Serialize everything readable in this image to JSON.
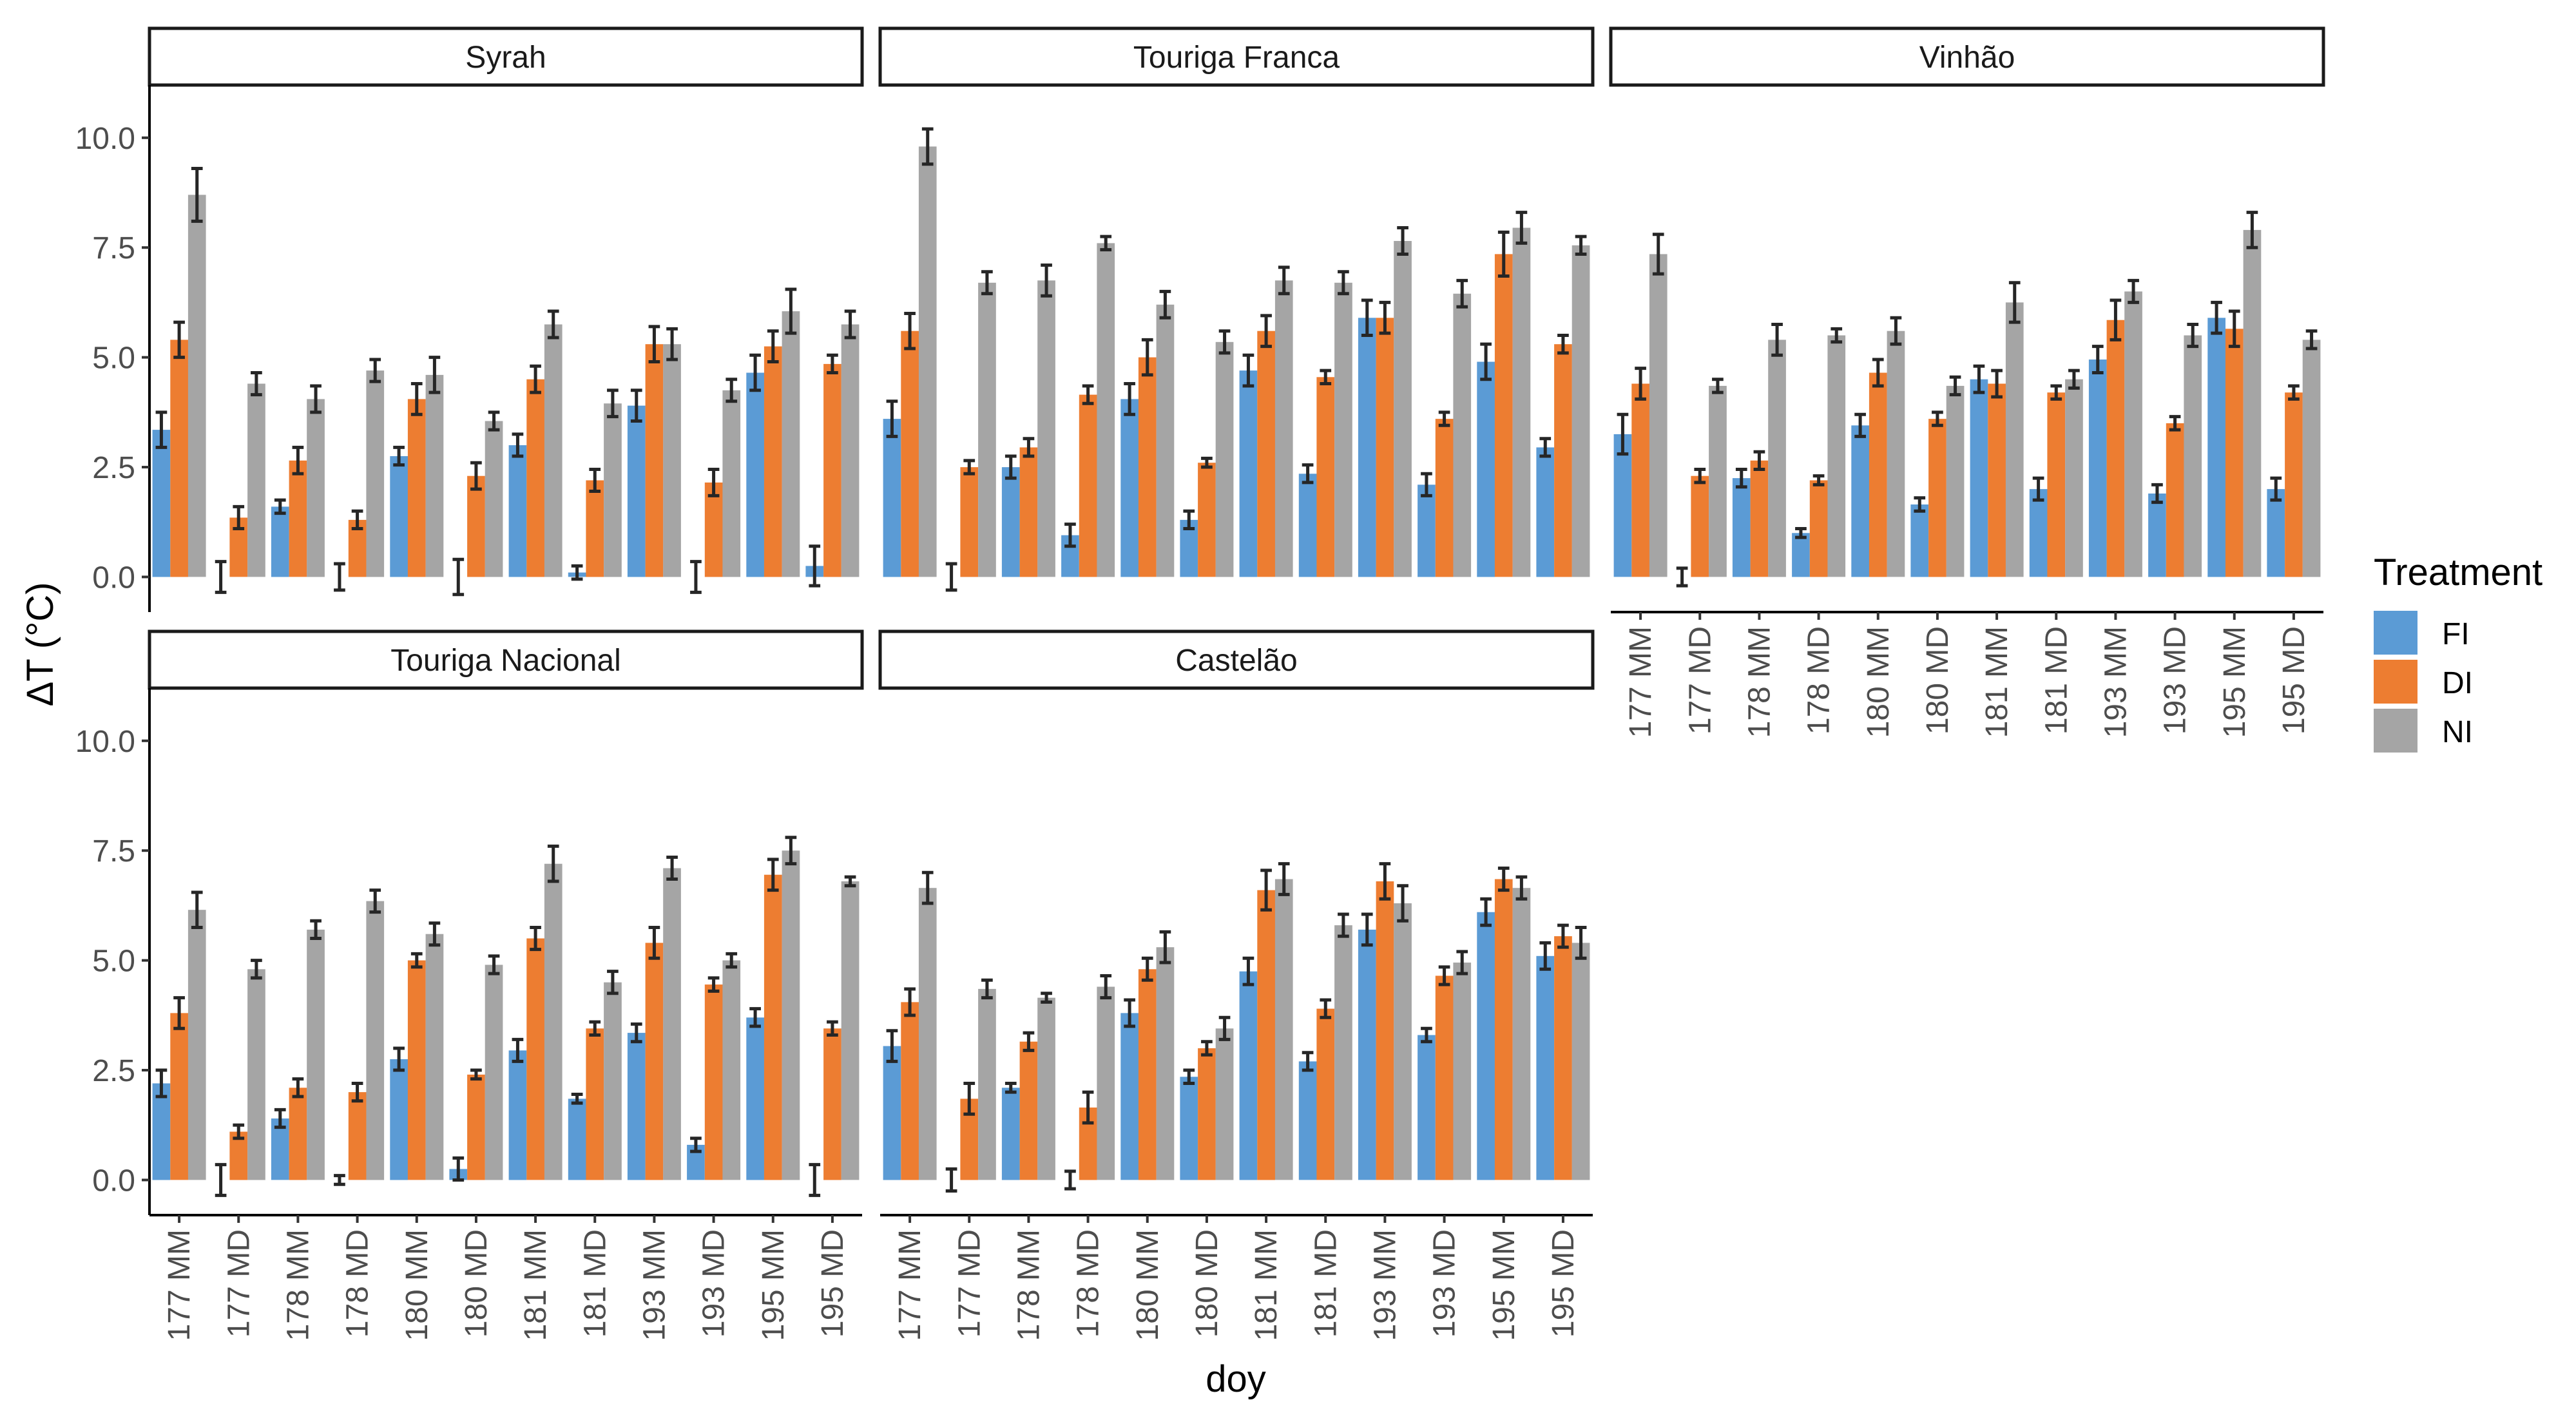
{
  "chart_data": {
    "type": "bar",
    "subtype": "faceted grouped bar with error bars",
    "xlabel": "doy",
    "ylabel": "ΔT (°C)",
    "ylim": [
      -0.8,
      11.2
    ],
    "yticks": [
      0.0,
      2.5,
      5.0,
      7.5,
      10.0
    ],
    "ytick_labels": [
      "0.0",
      "2.5",
      "5.0",
      "7.5",
      "10.0"
    ],
    "categories": [
      "177 MM",
      "177 MD",
      "178 MM",
      "178 MD",
      "180 MM",
      "180 MD",
      "181 MM",
      "181 MD",
      "193 MM",
      "193 MD",
      "195 MM",
      "195 MD"
    ],
    "legend": {
      "title": "Treatment",
      "position": "right",
      "entries": [
        {
          "name": "FI",
          "color": "#5b9bd5"
        },
        {
          "name": "DI",
          "color": "#ed7d31"
        },
        {
          "name": "NI",
          "color": "#a5a5a5"
        }
      ]
    },
    "panels": [
      {
        "title": "Syrah",
        "series": [
          {
            "name": "FI",
            "values": [
              3.35,
              0.0,
              1.6,
              0.0,
              2.75,
              0.0,
              3.0,
              0.1,
              3.9,
              0.0,
              4.65,
              0.25
            ],
            "errors": [
              0.4,
              0.35,
              0.15,
              0.3,
              0.2,
              0.4,
              0.25,
              0.15,
              0.35,
              0.35,
              0.4,
              0.45
            ]
          },
          {
            "name": "DI",
            "values": [
              5.4,
              1.35,
              2.65,
              1.3,
              4.05,
              2.3,
              4.5,
              2.2,
              5.3,
              2.15,
              5.25,
              4.85
            ],
            "errors": [
              0.4,
              0.25,
              0.3,
              0.2,
              0.35,
              0.3,
              0.3,
              0.25,
              0.4,
              0.3,
              0.35,
              0.2
            ]
          },
          {
            "name": "NI",
            "values": [
              8.7,
              4.4,
              4.05,
              4.7,
              4.6,
              3.55,
              5.75,
              3.95,
              5.3,
              4.25,
              6.05,
              5.75
            ],
            "errors": [
              0.6,
              0.25,
              0.3,
              0.25,
              0.4,
              0.2,
              0.3,
              0.3,
              0.35,
              0.25,
              0.5,
              0.3
            ]
          }
        ]
      },
      {
        "title": "Touriga Franca",
        "series": [
          {
            "name": "FI",
            "values": [
              3.6,
              0.0,
              2.5,
              0.95,
              4.05,
              1.3,
              4.7,
              2.35,
              5.9,
              2.1,
              4.9,
              2.95
            ],
            "errors": [
              0.4,
              0.3,
              0.25,
              0.25,
              0.35,
              0.2,
              0.35,
              0.2,
              0.4,
              0.25,
              0.4,
              0.2
            ]
          },
          {
            "name": "DI",
            "values": [
              5.6,
              2.5,
              2.95,
              4.15,
              5.0,
              2.6,
              5.6,
              4.55,
              5.9,
              3.6,
              7.35,
              5.3
            ],
            "errors": [
              0.4,
              0.15,
              0.2,
              0.2,
              0.4,
              0.1,
              0.35,
              0.15,
              0.35,
              0.15,
              0.5,
              0.2
            ]
          },
          {
            "name": "NI",
            "values": [
              9.8,
              6.7,
              6.75,
              7.6,
              6.2,
              5.35,
              6.75,
              6.7,
              7.65,
              6.45,
              7.95,
              7.55
            ],
            "errors": [
              0.4,
              0.25,
              0.35,
              0.15,
              0.3,
              0.25,
              0.3,
              0.25,
              0.3,
              0.3,
              0.35,
              0.2
            ]
          }
        ]
      },
      {
        "title": "Vinhão",
        "series": [
          {
            "name": "FI",
            "values": [
              3.25,
              0.0,
              2.25,
              1.0,
              3.45,
              1.65,
              4.5,
              2.0,
              4.95,
              1.9,
              5.9,
              2.0
            ],
            "errors": [
              0.45,
              0.2,
              0.2,
              0.1,
              0.25,
              0.15,
              0.3,
              0.25,
              0.3,
              0.2,
              0.35,
              0.25
            ]
          },
          {
            "name": "DI",
            "values": [
              4.4,
              2.3,
              2.65,
              2.2,
              4.65,
              3.6,
              4.4,
              4.2,
              5.85,
              3.5,
              5.65,
              4.2
            ],
            "errors": [
              0.35,
              0.15,
              0.2,
              0.1,
              0.3,
              0.15,
              0.3,
              0.15,
              0.45,
              0.15,
              0.4,
              0.15
            ]
          },
          {
            "name": "NI",
            "values": [
              7.35,
              4.35,
              5.4,
              5.5,
              5.6,
              4.35,
              6.25,
              4.5,
              6.5,
              5.5,
              7.9,
              5.4
            ],
            "errors": [
              0.45,
              0.15,
              0.35,
              0.15,
              0.3,
              0.2,
              0.45,
              0.2,
              0.25,
              0.25,
              0.4,
              0.2
            ]
          }
        ]
      },
      {
        "title": "Touriga Nacional",
        "series": [
          {
            "name": "FI",
            "values": [
              2.2,
              0.0,
              1.4,
              0.0,
              2.75,
              0.25,
              2.95,
              1.85,
              3.35,
              0.8,
              3.7,
              0.0
            ],
            "errors": [
              0.3,
              0.35,
              0.2,
              0.1,
              0.25,
              0.25,
              0.25,
              0.1,
              0.2,
              0.15,
              0.2,
              0.35
            ]
          },
          {
            "name": "DI",
            "values": [
              3.8,
              1.1,
              2.1,
              2.0,
              5.0,
              2.4,
              5.5,
              3.45,
              5.4,
              4.45,
              6.95,
              3.45
            ],
            "errors": [
              0.35,
              0.15,
              0.2,
              0.2,
              0.15,
              0.1,
              0.25,
              0.15,
              0.35,
              0.15,
              0.35,
              0.15
            ]
          },
          {
            "name": "NI",
            "values": [
              6.15,
              4.8,
              5.7,
              6.35,
              5.6,
              4.9,
              7.2,
              4.5,
              7.1,
              5.0,
              7.5,
              6.8
            ],
            "errors": [
              0.4,
              0.2,
              0.2,
              0.25,
              0.25,
              0.2,
              0.4,
              0.25,
              0.25,
              0.15,
              0.3,
              0.1
            ]
          }
        ]
      },
      {
        "title": "Castelão",
        "series": [
          {
            "name": "FI",
            "values": [
              3.05,
              0.0,
              2.1,
              0.0,
              3.8,
              2.35,
              4.75,
              2.7,
              5.7,
              3.3,
              6.1,
              5.1
            ],
            "errors": [
              0.35,
              0.25,
              0.1,
              0.2,
              0.3,
              0.15,
              0.3,
              0.2,
              0.35,
              0.15,
              0.3,
              0.3
            ]
          },
          {
            "name": "DI",
            "values": [
              4.05,
              1.85,
              3.15,
              1.65,
              4.8,
              3.0,
              6.6,
              3.9,
              6.8,
              4.65,
              6.85,
              5.55
            ],
            "errors": [
              0.3,
              0.35,
              0.2,
              0.35,
              0.25,
              0.15,
              0.45,
              0.2,
              0.4,
              0.2,
              0.25,
              0.25
            ]
          },
          {
            "name": "NI",
            "values": [
              6.65,
              4.35,
              4.15,
              4.4,
              5.3,
              3.45,
              6.85,
              5.8,
              6.3,
              4.95,
              6.65,
              5.4
            ],
            "errors": [
              0.35,
              0.2,
              0.1,
              0.25,
              0.35,
              0.25,
              0.35,
              0.25,
              0.4,
              0.25,
              0.25,
              0.35
            ]
          }
        ]
      }
    ]
  }
}
